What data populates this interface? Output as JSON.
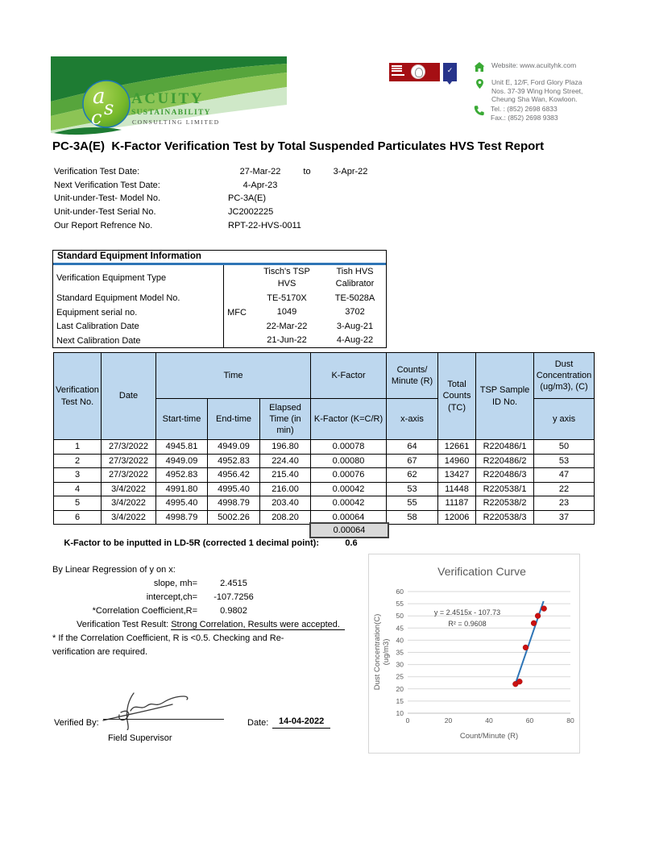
{
  "header": {
    "company": {
      "monogram": "asc",
      "name": "ACUITY",
      "subtitle": "SUSTAINABILITY",
      "subtitle2": "CONSULTING LIMITED"
    },
    "badges": [
      {
        "name": "certification-badge-red"
      },
      {
        "name": "certification-badge-blue"
      }
    ],
    "contact_rows": [
      {
        "icon": "home-icon",
        "lines": [
          "Website: www.acuityhk.com"
        ]
      },
      {
        "icon": "location-pin-icon",
        "lines": [
          "Unit E, 12/F, Ford Glory Plaza",
          "Nos. 37-39 Wing Hong Street,",
          "Cheung Sha Wan, Kowloon."
        ]
      },
      {
        "icon": "phone-icon",
        "lines": [
          "Tel. : (852) 2698 6833",
          "Fax.: (852) 2698 9383"
        ]
      }
    ]
  },
  "report": {
    "title": "PC-3A(E)  K-Factor Verification Test by Total Suspended Particulates HVS Test Report",
    "info_rows": [
      {
        "label": "Verification Test Date:",
        "value": "27-Mar-22",
        "to": "to",
        "value2": "3-Apr-22"
      },
      {
        "label": "Next Verification Test Date:",
        "value": "4-Apr-23"
      },
      {
        "label": "Unit-under-Test- Model No.",
        "value": "PC-3A(E)"
      },
      {
        "label": "Unit-under-Test Serial No.",
        "value": "JC2002225"
      },
      {
        "label": "Our Report Refrence No.",
        "value": "RPT-22-HVS-0011"
      }
    ]
  },
  "equipment_table": {
    "header": "Standard Equipment Information",
    "rows": [
      {
        "label": "Verification Equipment Type",
        "mfc": "",
        "v1": "Tisch's TSP\nHVS",
        "v2": "Tish HVS\nCalibrator"
      },
      {
        "label": "Standard Equipment Model No.",
        "mfc": "",
        "v1": "TE-5170X",
        "v2": "TE-5028A"
      },
      {
        "label": "Equipment serial no.",
        "mfc": "MFC",
        "v1": "1049",
        "v2": "3702"
      },
      {
        "label": "Last Calibration Date",
        "mfc": "",
        "v1": "22-Mar-22",
        "v2": "3-Aug-21"
      },
      {
        "label": "Next Calibration Date",
        "mfc": "",
        "v1": "21-Jun-22",
        "v2": "4-Aug-22"
      }
    ]
  },
  "main_table": {
    "header": {
      "test_no": "Verification Test No.",
      "date": "Date",
      "time": "Time",
      "start": "Start-time",
      "end": "End-time",
      "elapsed": "Elapsed Time (in min)",
      "kfactor_group": "K-Factor",
      "kfactor": "K-Factor (K=C/R)",
      "counts_min": "Counts/ Minute (R)",
      "x_axis": "x-axis",
      "total_counts": "Total Counts (TC)",
      "tsp": "TSP Sample ID No.",
      "dust": "Dust Concentration (ug/m3), (C)",
      "y_axis": "y axis"
    },
    "rows": [
      [
        "1",
        "27/3/2022",
        "4945.81",
        "4949.09",
        "196.80",
        "0.00078",
        "64",
        "12661",
        "R220486/1",
        "50"
      ],
      [
        "2",
        "27/3/2022",
        "4949.09",
        "4952.83",
        "224.40",
        "0.00080",
        "67",
        "14960",
        "R220486/2",
        "53"
      ],
      [
        "3",
        "27/3/2022",
        "4952.83",
        "4956.42",
        "215.40",
        "0.00076",
        "62",
        "13427",
        "R220486/3",
        "47"
      ],
      [
        "4",
        "3/4/2022",
        "4991.80",
        "4995.40",
        "216.00",
        "0.00042",
        "53",
        "11448",
        "R220538/1",
        "22"
      ],
      [
        "5",
        "3/4/2022",
        "4995.40",
        "4998.79",
        "203.40",
        "0.00042",
        "55",
        "11187",
        "R220538/2",
        "23"
      ],
      [
        "6",
        "3/4/2022",
        "4998.79",
        "5002.26",
        "208.20",
        "0.00064",
        "58",
        "12006",
        "R220538/3",
        "37"
      ]
    ]
  },
  "k_factor": {
    "average": "0.00064",
    "note_label": "K-Factor to be inputted in LD-5R (corrected 1 decimal point):",
    "note_value": "0.6"
  },
  "regression": {
    "heading": "By Linear Regression of y on x:",
    "slope_label": "slope, mh=",
    "slope_value": "2.4515",
    "intercept_label": "intercept,ch=",
    "intercept_value": "-107.7256",
    "corr_label": "*Correlation Coefficient,R=",
    "corr_value": "0.9802",
    "result_label": "Verification Test Result:",
    "result_value": "Strong Correlation, Results were accepted.",
    "note_line1": "* If the Correlation Coefficient, R is <0.5. Checking and Re-",
    "note_line2": "verification are required."
  },
  "signature": {
    "verified_by_label": "Verified By:",
    "role": "Field Supervisor",
    "date_label": "Date:",
    "date_value": "14-04-2022"
  },
  "chart_data": {
    "type": "scatter",
    "title": "Verification Curve",
    "xlabel": "Count/Minute (R)",
    "ylabel": "Dust Concentration(C)\n(ug/m3)",
    "x": [
      64,
      67,
      62,
      53,
      55,
      58
    ],
    "y": [
      50,
      53,
      47,
      22,
      23,
      37
    ],
    "points": [
      [
        64,
        50
      ],
      [
        67,
        53
      ],
      [
        62,
        47
      ],
      [
        53,
        22
      ],
      [
        55,
        23
      ],
      [
        58,
        37
      ]
    ],
    "trendline": {
      "equation": "y = 2.4515x - 107.73",
      "r_squared": "R² = 0.9608",
      "slope": 2.4515,
      "intercept": -107.73,
      "x_start": 52.8,
      "x_end": 66.8
    },
    "xlim": [
      0,
      80
    ],
    "xticks": [
      0,
      20,
      40,
      60,
      80
    ],
    "ylim": [
      10,
      60
    ],
    "ytick_step": 5,
    "grid": "horizontal",
    "legend": "none",
    "colors": {
      "point": "#cc1111",
      "line": "#2e75b6",
      "grid": "#d9d9d9",
      "text": "#595959"
    }
  },
  "colors": {
    "brand_green": "#3f9c35",
    "banner_dark_green": "#1e7c33",
    "banner_mid_green": "#57a53c",
    "banner_light_green": "#8cc455",
    "banner_pale_green": "#cfe8c8",
    "table_header_fill": "#bdd7ee",
    "header_rule_blue": "#2e75b6",
    "avg_box_fill": "#d9d9d9",
    "badge_red": "#a50f14",
    "badge_blue": "#27348b",
    "contact_text_gray": "#6d6e71"
  }
}
